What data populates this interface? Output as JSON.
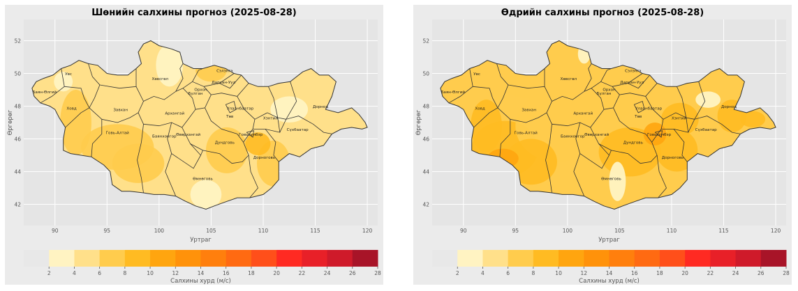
{
  "panels": [
    {
      "title": "Шөнийн салхины прогноз (2025-08-28)",
      "xlabel": "Уртраг",
      "ylabel": "Өргөрөг",
      "colorbar_label": "Салхины хурд (м/с)"
    },
    {
      "title": "Өдрийн салхины прогноз (2025-08-28)",
      "xlabel": "Уртраг",
      "ylabel": "Өргөрөг",
      "colorbar_label": "Салхины хурд (м/с)"
    }
  ],
  "chart_data": [
    {
      "type": "heatmap",
      "title": "Шөнийн салхины прогноз (2025-08-28)",
      "xlabel": "Уртраг",
      "ylabel": "Өргөрөг",
      "xlim": [
        87,
        121
      ],
      "ylim": [
        40.7,
        53.3
      ],
      "x_ticks": [
        90,
        95,
        100,
        105,
        110,
        115,
        120
      ],
      "y_ticks": [
        42,
        44,
        46,
        48,
        50,
        52
      ],
      "grid": true,
      "colorbar": {
        "label": "Салхины хурд (м/с)",
        "ticks": [
          2,
          4,
          6,
          8,
          10,
          12,
          14,
          16,
          18,
          20,
          22,
          24,
          26,
          28
        ],
        "colors": [
          "#e8e8e8",
          "#fff3c2",
          "#ffe08a",
          "#ffcc4d",
          "#ffbb22",
          "#ffa50f",
          "#ff920a",
          "#ff7f0d",
          "#ff6a12",
          "#ff4f1a",
          "#ff2a22",
          "#e82028",
          "#cf1a2a",
          "#a81428"
        ]
      },
      "approx_range_ms": [
        4,
        10
      ],
      "provinces": [
        {
          "name": "Баян-Өлгий",
          "lon": 89.0,
          "lat": 48.9
        },
        {
          "name": "Увс",
          "lon": 91.3,
          "lat": 50.0
        },
        {
          "name": "Ховд",
          "lon": 91.6,
          "lat": 47.9
        },
        {
          "name": "Завхан",
          "lon": 96.3,
          "lat": 47.8
        },
        {
          "name": "Говь-Алтай",
          "lon": 96.0,
          "lat": 46.4
        },
        {
          "name": "Хөвсгөл",
          "lon": 100.1,
          "lat": 49.7
        },
        {
          "name": "Архангай",
          "lon": 101.5,
          "lat": 47.6
        },
        {
          "name": "Баянхонгор",
          "lon": 100.5,
          "lat": 46.2
        },
        {
          "name": "Өвөрхангай",
          "lon": 102.8,
          "lat": 46.3
        },
        {
          "name": "Өмнөговь",
          "lon": 104.2,
          "lat": 43.6
        },
        {
          "name": "Дундговь",
          "lon": 106.3,
          "lat": 45.8
        },
        {
          "name": "Булган",
          "lon": 103.5,
          "lat": 48.8
        },
        {
          "name": "Орхон",
          "lon": 104.0,
          "lat": 49.05
        },
        {
          "name": "Сэлэнгэ",
          "lon": 106.3,
          "lat": 50.2
        },
        {
          "name": "Дархан-Уул",
          "lon": 106.2,
          "lat": 49.5
        },
        {
          "name": "Төв",
          "lon": 106.8,
          "lat": 47.4
        },
        {
          "name": "Улаанбаатар",
          "lon": 107.8,
          "lat": 47.9
        },
        {
          "name": "Говьсүмбэр",
          "lon": 108.8,
          "lat": 46.3
        },
        {
          "name": "Хэнтий",
          "lon": 110.7,
          "lat": 47.3
        },
        {
          "name": "Дорнод",
          "lon": 115.5,
          "lat": 48.0
        },
        {
          "name": "Сүхбаатар",
          "lon": 113.3,
          "lat": 46.6
        },
        {
          "name": "Дорноговь",
          "lon": 110.1,
          "lat": 44.9
        }
      ]
    },
    {
      "type": "heatmap",
      "title": "Өдрийн салхины прогноз (2025-08-28)",
      "xlabel": "Уртраг",
      "ylabel": "Өргөрөг",
      "xlim": [
        87,
        121
      ],
      "ylim": [
        40.7,
        53.3
      ],
      "x_ticks": [
        90,
        95,
        100,
        105,
        110,
        115,
        120
      ],
      "y_ticks": [
        42,
        44,
        46,
        48,
        50,
        52
      ],
      "grid": true,
      "colorbar": {
        "label": "Салхины хурд (м/с)",
        "ticks": [
          2,
          4,
          6,
          8,
          10,
          12,
          14,
          16,
          18,
          20,
          22,
          24,
          26,
          28
        ],
        "colors": [
          "#e8e8e8",
          "#fff3c2",
          "#ffe08a",
          "#ffcc4d",
          "#ffbb22",
          "#ffa50f",
          "#ff920a",
          "#ff7f0d",
          "#ff6a12",
          "#ff4f1a",
          "#ff2a22",
          "#e82028",
          "#cf1a2a",
          "#a81428"
        ]
      },
      "approx_range_ms": [
        4,
        12
      ],
      "provinces": [
        {
          "name": "Баян-Өлгий",
          "lon": 89.0,
          "lat": 48.9
        },
        {
          "name": "Увс",
          "lon": 91.3,
          "lat": 50.0
        },
        {
          "name": "Ховд",
          "lon": 91.6,
          "lat": 47.9
        },
        {
          "name": "Завхан",
          "lon": 96.3,
          "lat": 47.8
        },
        {
          "name": "Говь-Алтай",
          "lon": 96.0,
          "lat": 46.4
        },
        {
          "name": "Хөвсгөл",
          "lon": 100.1,
          "lat": 49.7
        },
        {
          "name": "Архангай",
          "lon": 101.5,
          "lat": 47.6
        },
        {
          "name": "Баянхонгор",
          "lon": 100.5,
          "lat": 46.2
        },
        {
          "name": "Өвөрхангай",
          "lon": 102.8,
          "lat": 46.3
        },
        {
          "name": "Өмнөговь",
          "lon": 104.2,
          "lat": 43.6
        },
        {
          "name": "Дундговь",
          "lon": 106.3,
          "lat": 45.8
        },
        {
          "name": "Булган",
          "lon": 103.5,
          "lat": 48.8
        },
        {
          "name": "Орхон",
          "lon": 104.0,
          "lat": 49.05
        },
        {
          "name": "Сэлэнгэ",
          "lon": 106.3,
          "lat": 50.2
        },
        {
          "name": "Дархан-Уул",
          "lon": 106.2,
          "lat": 49.5
        },
        {
          "name": "Төв",
          "lon": 106.8,
          "lat": 47.4
        },
        {
          "name": "Улаанбаатар",
          "lon": 107.8,
          "lat": 47.9
        },
        {
          "name": "Говьсүмбэр",
          "lon": 108.8,
          "lat": 46.3
        },
        {
          "name": "Хэнтий",
          "lon": 110.7,
          "lat": 47.3
        },
        {
          "name": "Дорнод",
          "lon": 115.5,
          "lat": 48.0
        },
        {
          "name": "Сүхбаатар",
          "lon": 113.3,
          "lat": 46.6
        },
        {
          "name": "Дорноговь",
          "lon": 110.1,
          "lat": 44.9
        }
      ]
    }
  ]
}
